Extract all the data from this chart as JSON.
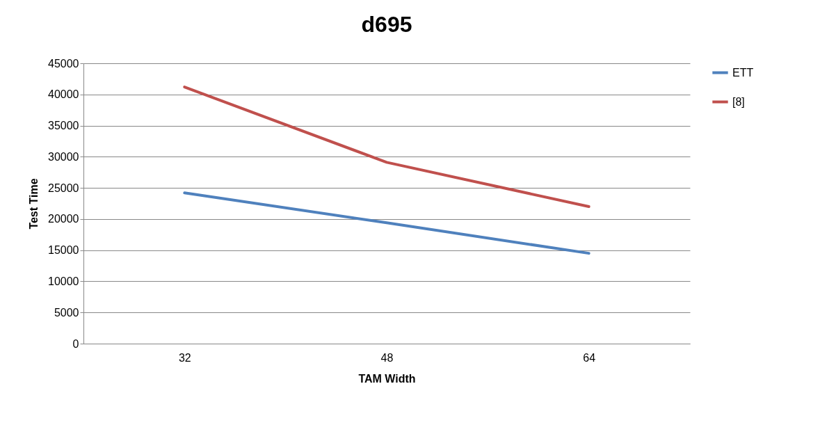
{
  "chart_data": {
    "type": "line",
    "title": "d695",
    "xlabel": "TAM Width",
    "ylabel": "Test Time",
    "categories": [
      "32",
      "48",
      "64"
    ],
    "series": [
      {
        "name": "ETT",
        "color": "#4f81bd",
        "values": [
          24200,
          19400,
          14500
        ]
      },
      {
        "name": "[8]",
        "color": "#c0504d",
        "values": [
          41200,
          29100,
          22000
        ]
      }
    ],
    "ylim": [
      0,
      45000
    ],
    "yticks": [
      0,
      5000,
      10000,
      15000,
      20000,
      25000,
      30000,
      35000,
      40000,
      45000
    ],
    "grid": "y",
    "legend": "right",
    "marker": "none",
    "line_style": "solid"
  }
}
